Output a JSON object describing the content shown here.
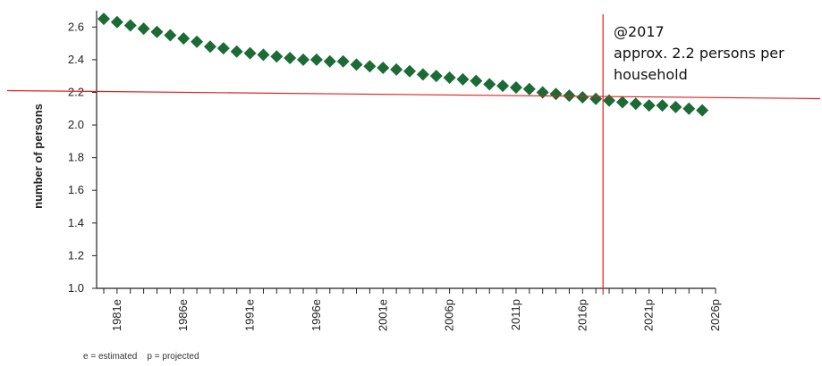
{
  "chart_data": {
    "type": "scatter",
    "ylabel": "number of persons",
    "xlabel": "",
    "ylim": [
      1.0,
      2.7
    ],
    "yticks": [
      "1.0",
      "1.2",
      "1.4",
      "1.6",
      "1.8",
      "2.0",
      "2.2",
      "2.4",
      "2.6"
    ],
    "xtick_labels": [
      "1981e",
      "1986e",
      "1991e",
      "1996e",
      "2001e",
      "2006p",
      "2011p",
      "2016p",
      "2021p",
      "2026p"
    ],
    "xlim": [
      1980,
      2026
    ],
    "marker_color": "#1b6b35",
    "series": [
      {
        "x": [
          1980,
          1981,
          1982,
          1983,
          1984,
          1985,
          1986,
          1987,
          1988,
          1989,
          1990,
          1991,
          1992,
          1993,
          1994,
          1995,
          1996,
          1997,
          1998,
          1999,
          2000,
          2001,
          2002,
          2003,
          2004,
          2005,
          2006,
          2007,
          2008,
          2009,
          2010,
          2011,
          2012,
          2013,
          2014,
          2015,
          2016,
          2017,
          2018,
          2019,
          2020,
          2021,
          2022,
          2023,
          2024,
          2025
        ],
        "values": [
          2.65,
          2.63,
          2.61,
          2.59,
          2.57,
          2.55,
          2.53,
          2.51,
          2.48,
          2.47,
          2.45,
          2.44,
          2.43,
          2.42,
          2.41,
          2.4,
          2.4,
          2.39,
          2.39,
          2.37,
          2.36,
          2.35,
          2.34,
          2.33,
          2.31,
          2.3,
          2.29,
          2.28,
          2.27,
          2.25,
          2.24,
          2.23,
          2.22,
          2.2,
          2.19,
          2.18,
          2.17,
          2.16,
          2.15,
          2.14,
          2.13,
          2.12,
          2.12,
          2.11,
          2.1,
          2.09
        ]
      }
    ],
    "reference_lines": {
      "horizontal_value": 2.2,
      "vertical_value": 2017,
      "color": "#e02020"
    },
    "footnote": "e = estimated    p = projected",
    "annotation": {
      "lines": [
        "@2017",
        "approx. 2.2 persons per",
        "household"
      ]
    }
  }
}
